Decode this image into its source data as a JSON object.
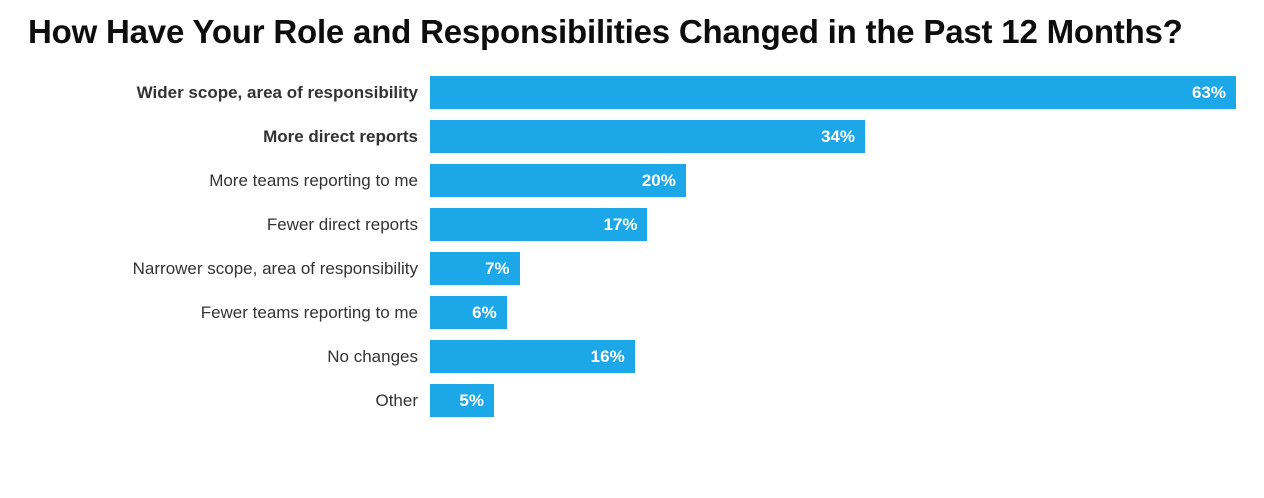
{
  "chart_data": {
    "type": "bar",
    "orientation": "horizontal",
    "title": "How Have Your Role and Responsibilities Changed in the Past 12 Months?",
    "categories": [
      "Wider scope, area of responsibility",
      "More direct reports",
      "More teams reporting to me",
      "Fewer direct reports",
      "Narrower scope, area of responsibility",
      "Fewer teams reporting to me",
      "No changes",
      "Other"
    ],
    "values": [
      63,
      34,
      20,
      17,
      7,
      6,
      16,
      5
    ],
    "value_labels": [
      "63%",
      "34%",
      "20%",
      "17%",
      "7%",
      "6%",
      "16%",
      "5%"
    ],
    "emphasis": [
      true,
      true,
      false,
      false,
      false,
      false,
      false,
      false
    ],
    "xlim": [
      0,
      63
    ],
    "bar_color": "#1CA7E8",
    "value_label_color": "#FFFFFF",
    "label_color": "#333333",
    "title_color": "#0D0D0D",
    "background_color": "#FFFFFF",
    "grid": false,
    "legend": false,
    "value_label_position": "inside-end"
  }
}
